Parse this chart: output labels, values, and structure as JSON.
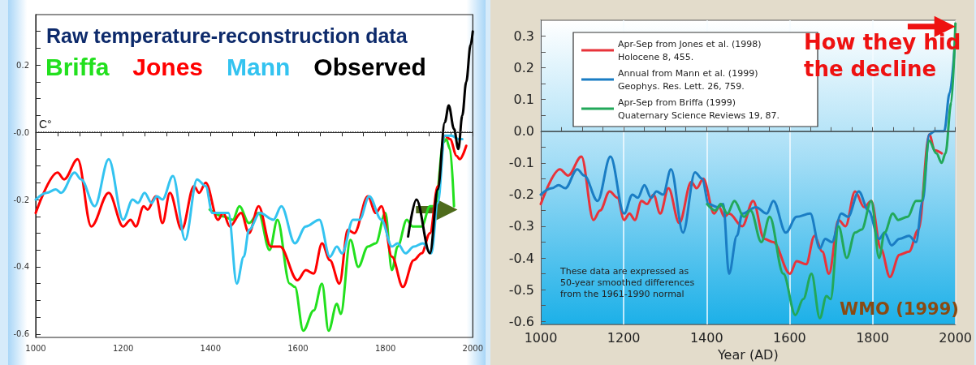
{
  "chart_data": [
    {
      "type": "line",
      "title": "Raw temperature-reconstruction data",
      "ylabel": "C°",
      "legend": "top left",
      "marker": "none",
      "line_style": "solid",
      "grid": false,
      "xlim": [
        1000,
        2000
      ],
      "ylim": [
        -0.61,
        0.35
      ],
      "xticks": [
        1000,
        {
          "value": 1050,
          "label": null
        },
        1200,
        {
          "value": 1100,
          "label": null
        },
        {
          "value": 1150,
          "label": null
        },
        {
          "value": 1250,
          "label": null
        },
        1400,
        {
          "value": 1300,
          "label": null
        },
        {
          "value": 1350,
          "label": null
        },
        {
          "value": 1450,
          "label": null
        },
        1600,
        {
          "value": 1500,
          "label": null
        },
        {
          "value": 1550,
          "label": null
        },
        {
          "value": 1650,
          "label": null
        },
        1800,
        {
          "value": 1700,
          "label": null
        },
        {
          "value": 1750,
          "label": null
        },
        {
          "value": 1850,
          "label": null
        },
        2000,
        {
          "value": 1900,
          "label": null
        },
        {
          "value": 1950,
          "label": null
        }
      ],
      "yticks": [
        -0.6,
        {
          "value": -0.55,
          "label": null
        },
        {
          "value": -0.5,
          "label": null
        },
        {
          "value": -0.45,
          "label": null
        },
        -0.4,
        {
          "value": -0.35,
          "label": null
        },
        {
          "value": -0.3,
          "label": null
        },
        {
          "value": -0.25,
          "label": null
        },
        -0.2,
        {
          "value": -0.15,
          "label": null
        },
        {
          "value": -0.1,
          "label": null
        },
        {
          "value": -0.05,
          "label": null
        },
        {
          "value": 0,
          "label": "-0.0"
        },
        {
          "value": 0.05,
          "label": null
        },
        {
          "value": 0.1,
          "label": null
        },
        {
          "value": 0.15,
          "label": null
        },
        0.2,
        {
          "value": 0.25,
          "label": null
        },
        {
          "value": 0.3,
          "label": null
        }
      ],
      "ref_lines": [
        {
          "axis": "y",
          "value": 0,
          "color": "#333333",
          "line_style": "dotted"
        }
      ],
      "series": [
        {
          "name": "Briffa",
          "color": "#22e01e",
          "x": [
            1398,
            1429,
            1451,
            1466,
            1488,
            1510,
            1535,
            1553,
            1581,
            1593,
            1612,
            1636,
            1655,
            1670,
            1689,
            1698,
            1720,
            1738,
            1760,
            1778,
            1800,
            1815,
            1828,
            1849,
            1862,
            1883,
            1902,
            1914,
            1933,
            1939,
            1948,
            1957
          ],
          "values": [
            -0.23,
            -0.25,
            -0.26,
            -0.22,
            -0.27,
            -0.24,
            -0.35,
            -0.26,
            -0.45,
            -0.46,
            -0.59,
            -0.53,
            -0.45,
            -0.59,
            -0.51,
            -0.54,
            -0.32,
            -0.4,
            -0.34,
            -0.33,
            -0.24,
            -0.41,
            -0.34,
            -0.26,
            -0.28,
            -0.28,
            -0.22,
            -0.22,
            -0.03,
            -0.02,
            -0.05,
            -0.22
          ]
        },
        {
          "name": "Jones",
          "color": "#ff0000",
          "x": [
            1000,
            1050,
            1065,
            1096,
            1127,
            1167,
            1200,
            1217,
            1229,
            1247,
            1256,
            1275,
            1290,
            1307,
            1334,
            1362,
            1374,
            1389,
            1417,
            1429,
            1444,
            1470,
            1488,
            1510,
            1538,
            1559,
            1599,
            1618,
            1636,
            1655,
            1673,
            1695,
            1714,
            1729,
            1760,
            1778,
            1791,
            1815,
            1840,
            1865,
            1883,
            1902,
            1920,
            1936,
            1948,
            1963,
            1970,
            1985
          ],
          "values": [
            -0.24,
            -0.12,
            -0.14,
            -0.08,
            -0.28,
            -0.18,
            -0.28,
            -0.26,
            -0.28,
            -0.22,
            -0.23,
            -0.19,
            -0.27,
            -0.18,
            -0.29,
            -0.16,
            -0.18,
            -0.15,
            -0.26,
            -0.24,
            -0.28,
            -0.24,
            -0.3,
            -0.22,
            -0.34,
            -0.34,
            -0.44,
            -0.41,
            -0.42,
            -0.33,
            -0.38,
            -0.45,
            -0.29,
            -0.3,
            -0.19,
            -0.24,
            -0.22,
            -0.37,
            -0.46,
            -0.38,
            -0.36,
            -0.3,
            -0.16,
            -0.01,
            -0.02,
            -0.07,
            -0.08,
            -0.04
          ]
        },
        {
          "name": "Mann",
          "color": "#33c3f0",
          "x": [
            1000,
            1025,
            1046,
            1058,
            1089,
            1104,
            1135,
            1167,
            1200,
            1222,
            1234,
            1249,
            1265,
            1277,
            1290,
            1314,
            1342,
            1369,
            1389,
            1404,
            1426,
            1441,
            1460,
            1476,
            1488,
            1513,
            1544,
            1562,
            1593,
            1618,
            1649,
            1673,
            1689,
            1701,
            1726,
            1741,
            1763,
            1791,
            1815,
            1828,
            1846,
            1865,
            1886,
            1905,
            1920,
            1936,
            1951,
            1967,
            1976
          ],
          "values": [
            -0.2,
            -0.18,
            -0.17,
            -0.18,
            -0.12,
            -0.14,
            -0.22,
            -0.08,
            -0.26,
            -0.2,
            -0.21,
            -0.18,
            -0.21,
            -0.19,
            -0.2,
            -0.13,
            -0.32,
            -0.14,
            -0.16,
            -0.24,
            -0.24,
            -0.24,
            -0.45,
            -0.37,
            -0.29,
            -0.24,
            -0.26,
            -0.22,
            -0.33,
            -0.28,
            -0.26,
            -0.37,
            -0.34,
            -0.36,
            -0.26,
            -0.26,
            -0.19,
            -0.26,
            -0.34,
            -0.33,
            -0.36,
            -0.34,
            -0.33,
            -0.36,
            -0.21,
            -0.01,
            -0.01,
            -0.02,
            -0.02
          ]
        },
        {
          "name": "Observed",
          "color": "#000000",
          "x": [
            1852,
            1871,
            1902,
            1920,
            1936,
            1945,
            1957,
            1967,
            1976,
            1985,
            1995,
            2000
          ],
          "values": [
            -0.31,
            -0.2,
            -0.36,
            -0.17,
            0.03,
            0.08,
            0.01,
            -0.05,
            0.05,
            0.15,
            0.26,
            0.3
          ]
        }
      ]
    },
    {
      "type": "line",
      "xlabel": "Year (AD)",
      "legend": "top left",
      "marker": "none",
      "line_style": "solid",
      "grid": "x",
      "xlim": [
        1000,
        2000
      ],
      "ylim": [
        -0.61,
        0.35
      ],
      "xticks": [
        1000,
        {
          "value": 1050,
          "label": null
        },
        1200,
        {
          "value": 1100,
          "label": null
        },
        {
          "value": 1150,
          "label": null
        },
        {
          "value": 1250,
          "label": null
        },
        1400,
        {
          "value": 1300,
          "label": null
        },
        {
          "value": 1350,
          "label": null
        },
        {
          "value": 1450,
          "label": null
        },
        1600,
        {
          "value": 1500,
          "label": null
        },
        {
          "value": 1550,
          "label": null
        },
        {
          "value": 1650,
          "label": null
        },
        1800,
        {
          "value": 1700,
          "label": null
        },
        {
          "value": 1750,
          "label": null
        },
        {
          "value": 1850,
          "label": null
        },
        2000,
        {
          "value": 1900,
          "label": null
        },
        {
          "value": 1950,
          "label": null
        }
      ],
      "yticks": [
        -0.6,
        {
          "value": -0.55,
          "label": null
        },
        -0.5,
        {
          "value": -0.45,
          "label": null
        },
        -0.4,
        {
          "value": -0.35,
          "label": null
        },
        -0.3,
        {
          "value": -0.25,
          "label": null
        },
        -0.2,
        {
          "value": -0.15,
          "label": null
        },
        -0.1,
        {
          "value": -0.05,
          "label": null
        },
        {
          "value": 0,
          "label": "0.0"
        },
        {
          "value": 0.05,
          "label": null
        },
        0.1,
        {
          "value": 0.15,
          "label": null
        },
        0.2,
        {
          "value": 0.25,
          "label": null
        },
        0.3
      ],
      "ref_lines": [
        {
          "axis": "y",
          "value": 0,
          "color": "#4a5a60",
          "line_style": "solid"
        }
      ],
      "annotations": [
        "These data are expressed as 50-year smoothed differences from the 1961-1990 normal",
        "WMO (1999)",
        "How they hid the decline"
      ],
      "series": [
        {
          "name": "Apr-Sep from Jones et al. (1998) Holocene 8, 455.",
          "color": "#e8333a",
          "x": [
            1000,
            1046,
            1066,
            1098,
            1127,
            1143,
            1166,
            1185,
            1201,
            1214,
            1227,
            1243,
            1256,
            1272,
            1288,
            1308,
            1334,
            1363,
            1376,
            1392,
            1418,
            1430,
            1443,
            1454,
            1486,
            1512,
            1539,
            1561,
            1601,
            1617,
            1640,
            1660,
            1679,
            1695,
            1718,
            1735,
            1758,
            1780,
            1797,
            1820,
            1842,
            1865,
            1888,
            1911,
            1937,
            1950,
            1967
          ],
          "values": [
            -0.23,
            -0.12,
            -0.14,
            -0.08,
            -0.28,
            -0.25,
            -0.19,
            -0.21,
            -0.28,
            -0.26,
            -0.28,
            -0.22,
            -0.23,
            -0.2,
            -0.26,
            -0.18,
            -0.29,
            -0.16,
            -0.18,
            -0.15,
            -0.26,
            -0.24,
            -0.27,
            -0.26,
            -0.3,
            -0.22,
            -0.34,
            -0.35,
            -0.45,
            -0.41,
            -0.42,
            -0.33,
            -0.38,
            -0.45,
            -0.28,
            -0.3,
            -0.19,
            -0.24,
            -0.22,
            -0.37,
            -0.46,
            -0.39,
            -0.38,
            -0.31,
            -0.01,
            -0.06,
            -0.07
          ]
        },
        {
          "name": "Annual from Mann et al. (1999) Geophys. Res. Lett. 26, 759.",
          "color": "#1a7dc4",
          "x": [
            1000,
            1027,
            1043,
            1059,
            1088,
            1105,
            1137,
            1168,
            1201,
            1221,
            1234,
            1250,
            1266,
            1279,
            1295,
            1314,
            1343,
            1372,
            1389,
            1405,
            1427,
            1440,
            1454,
            1473,
            1486,
            1519,
            1545,
            1561,
            1591,
            1617,
            1650,
            1673,
            1686,
            1702,
            1725,
            1741,
            1767,
            1790,
            1816,
            1829,
            1846,
            1865,
            1888,
            1905,
            1921,
            1937,
            1950,
            1973,
            1986,
            2000
          ],
          "values": [
            -0.2,
            -0.18,
            -0.17,
            -0.18,
            -0.12,
            -0.14,
            -0.22,
            -0.08,
            -0.26,
            -0.2,
            -0.21,
            -0.17,
            -0.21,
            -0.19,
            -0.2,
            -0.12,
            -0.32,
            -0.13,
            -0.15,
            -0.23,
            -0.24,
            -0.23,
            -0.45,
            -0.33,
            -0.26,
            -0.24,
            -0.26,
            -0.22,
            -0.32,
            -0.27,
            -0.26,
            -0.37,
            -0.34,
            -0.35,
            -0.26,
            -0.27,
            -0.19,
            -0.25,
            -0.34,
            -0.32,
            -0.36,
            -0.34,
            -0.33,
            -0.35,
            -0.22,
            -0.01,
            0.0,
            0.0,
            0.12,
            0.3
          ]
        },
        {
          "name": "Apr-Sep from Briffa (1999) Quaternary Science Reviews 19, 87.",
          "color": "#22a85a",
          "x": [
            1401,
            1421,
            1434,
            1450,
            1467,
            1490,
            1506,
            1532,
            1552,
            1585,
            1614,
            1633,
            1653,
            1673,
            1689,
            1699,
            1718,
            1738,
            1758,
            1774,
            1797,
            1816,
            1829,
            1849,
            1862,
            1885,
            1905,
            1918,
            1937,
            1954,
            1967,
            1976,
            1990,
            2000
          ],
          "values": [
            -0.23,
            -0.25,
            -0.23,
            -0.26,
            -0.22,
            -0.27,
            -0.25,
            -0.35,
            -0.27,
            -0.45,
            -0.58,
            -0.53,
            -0.45,
            -0.59,
            -0.52,
            -0.53,
            -0.3,
            -0.4,
            -0.32,
            -0.31,
            -0.22,
            -0.4,
            -0.32,
            -0.26,
            -0.28,
            -0.27,
            -0.22,
            -0.22,
            -0.03,
            -0.07,
            -0.1,
            -0.07,
            0.09,
            0.34
          ]
        }
      ]
    }
  ]
}
